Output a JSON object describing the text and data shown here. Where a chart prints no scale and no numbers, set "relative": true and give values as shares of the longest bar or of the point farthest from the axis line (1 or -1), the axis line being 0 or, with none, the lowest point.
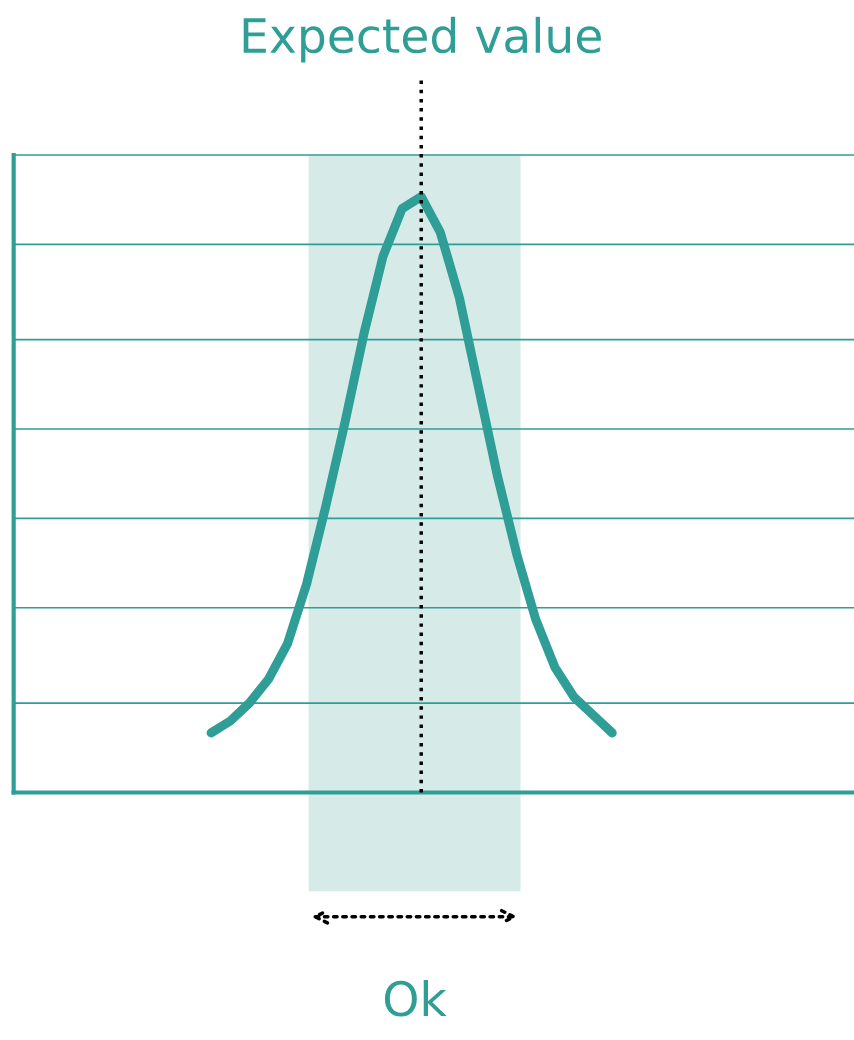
{
  "chart_data": {
    "type": "line",
    "relative": true,
    "marker": "none",
    "line_style": "solid",
    "categories": [
      null,
      null,
      null,
      null,
      null,
      null,
      null,
      null,
      null,
      null,
      null,
      null,
      null,
      null,
      null,
      null,
      null,
      null,
      null,
      null,
      null,
      null
    ],
    "series": [
      {
        "color": "#2e9e96",
        "values": [
          0.1,
          0.12,
          0.15,
          0.19,
          0.25,
          0.35,
          0.48,
          0.62,
          0.77,
          0.9,
          0.98,
          1.0,
          0.94,
          0.83,
          0.68,
          0.53,
          0.4,
          0.29,
          0.21,
          0.16,
          0.13,
          0.1
        ]
      }
    ],
    "ref_lines": [
      {
        "axis": "y",
        "value": 0.15,
        "color": "#2e9e96"
      },
      {
        "axis": "y",
        "value": 0.31,
        "color": "#2e9e96"
      },
      {
        "axis": "y",
        "value": 0.46,
        "color": "#2e9e96"
      },
      {
        "axis": "y",
        "value": 0.61,
        "color": "#2e9e96"
      },
      {
        "axis": "y",
        "value": 0.76,
        "color": "#2e9e96"
      },
      {
        "axis": "y",
        "value": 0.92,
        "color": "#2e9e96"
      },
      {
        "axis": "y",
        "value": 1.07,
        "color": "#2e9e96"
      }
    ],
    "annotations": [
      "Expected value",
      "Ok"
    ]
  }
}
